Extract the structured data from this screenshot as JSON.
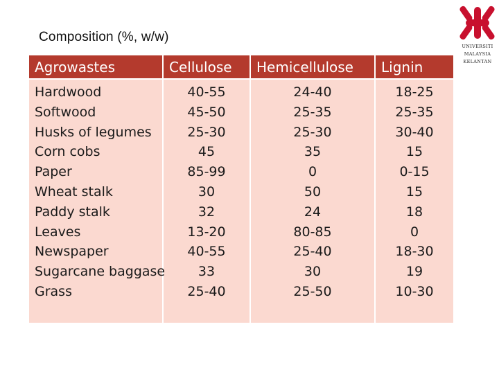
{
  "caption": "Composition (%, w/w)",
  "logo": {
    "icon": "university-logo-icon",
    "lines": [
      "UNIVERSITI",
      "MALAYSIA",
      "KELANTAN"
    ],
    "color": "#c8102e"
  },
  "table": {
    "header_color": "#b43a2d",
    "body_color": "#fbd9d0",
    "columns": [
      "Agrowastes",
      "Cellulose",
      "Hemicellulose",
      "Lignin"
    ],
    "rows": [
      {
        "name": "Hardwood",
        "cellulose": "40-55",
        "hemicellulose": "24-40",
        "lignin": "18-25"
      },
      {
        "name": "Softwood",
        "cellulose": "45-50",
        "hemicellulose": "25-35",
        "lignin": "25-35"
      },
      {
        "name": "Husks of legumes",
        "cellulose": "25-30",
        "hemicellulose": "25-30",
        "lignin": "30-40"
      },
      {
        "name": "Corn cobs",
        "cellulose": "45",
        "hemicellulose": "35",
        "lignin": "15"
      },
      {
        "name": "Paper",
        "cellulose": "85-99",
        "hemicellulose": "0",
        "lignin": "0-15"
      },
      {
        "name": "Wheat stalk",
        "cellulose": "30",
        "hemicellulose": "50",
        "lignin": "15"
      },
      {
        "name": "Paddy stalk",
        "cellulose": "32",
        "hemicellulose": "24",
        "lignin": "18"
      },
      {
        "name": "Leaves",
        "cellulose": "13-20",
        "hemicellulose": "80-85",
        "lignin": "0"
      },
      {
        "name": "Newspaper",
        "cellulose": "40-55",
        "hemicellulose": "25-40",
        "lignin": "18-30"
      },
      {
        "name": "Sugarcane baggase",
        "cellulose": "33",
        "hemicellulose": "30",
        "lignin": "19"
      },
      {
        "name": "Grass",
        "cellulose": "25-40",
        "hemicellulose": "25-50",
        "lignin": "10-30"
      }
    ]
  }
}
